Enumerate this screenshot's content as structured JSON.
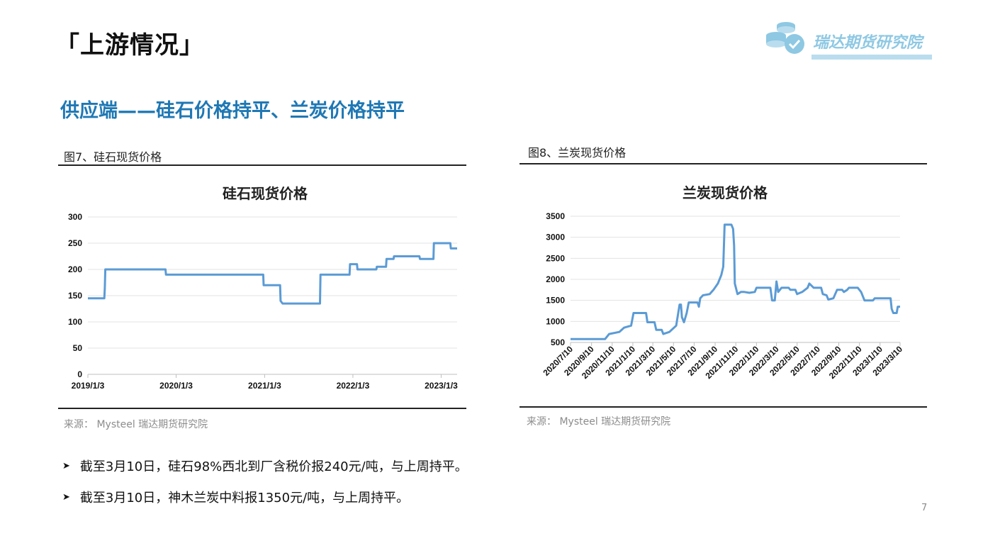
{
  "header": {
    "section_title": "「上游情况」",
    "logo_text": "瑞达期货研究院"
  },
  "subtitle": "供应端——硅石价格持平、兰炭价格持平",
  "figures": [
    {
      "caption": "图7、硅石现货价格",
      "source": "来源：  Mysteel   瑞达期货研究院"
    },
    {
      "caption": "图8、兰炭现货价格",
      "source": "来源：  Mysteel   瑞达期货研究院"
    }
  ],
  "chart_data": [
    {
      "type": "line",
      "title": "硅石现货价格",
      "color": "#5b9bd5",
      "ylim": [
        0,
        300
      ],
      "yticks": [
        0,
        50,
        100,
        150,
        200,
        250,
        300
      ],
      "xticks": [
        "2019/1/3",
        "2020/1/3",
        "2021/1/3",
        "2022/1/3",
        "2023/1/3"
      ],
      "xlim": [
        "2019-01-03",
        "2023-03-10"
      ],
      "grid": true,
      "points": [
        [
          "2019-01-03",
          145
        ],
        [
          "2019-03-12",
          145
        ],
        [
          "2019-03-14",
          165
        ],
        [
          "2019-03-16",
          200
        ],
        [
          "2019-11-20",
          200
        ],
        [
          "2019-11-22",
          190
        ],
        [
          "2020-12-28",
          190
        ],
        [
          "2020-12-30",
          170
        ],
        [
          "2021-03-08",
          170
        ],
        [
          "2021-03-10",
          140
        ],
        [
          "2021-03-18",
          135
        ],
        [
          "2021-08-20",
          135
        ],
        [
          "2021-08-22",
          190
        ],
        [
          "2021-12-20",
          190
        ],
        [
          "2021-12-22",
          210
        ],
        [
          "2022-01-20",
          210
        ],
        [
          "2022-01-22",
          200
        ],
        [
          "2022-04-10",
          200
        ],
        [
          "2022-04-12",
          205
        ],
        [
          "2022-05-20",
          205
        ],
        [
          "2022-05-22",
          220
        ],
        [
          "2022-06-20",
          220
        ],
        [
          "2022-06-22",
          225
        ],
        [
          "2022-10-05",
          225
        ],
        [
          "2022-10-07",
          220
        ],
        [
          "2022-12-02",
          220
        ],
        [
          "2022-12-04",
          250
        ],
        [
          "2023-02-10",
          250
        ],
        [
          "2023-02-12",
          240
        ],
        [
          "2023-03-10",
          240
        ]
      ]
    },
    {
      "type": "line",
      "title": "兰炭现货价格",
      "color": "#5b9bd5",
      "ylim": [
        500,
        3500
      ],
      "yticks": [
        500,
        1000,
        1500,
        2000,
        2500,
        3000,
        3500
      ],
      "xticks": [
        "2020/7/10",
        "2020/9/10",
        "2020/11/10",
        "2021/1/10",
        "2021/3/10",
        "2021/5/10",
        "2021/7/10",
        "2021/9/10",
        "2021/11/10",
        "2022/1/10",
        "2022/3/10",
        "2022/5/10",
        "2022/7/10",
        "2022/9/10",
        "2022/11/10",
        "2023/1/10",
        "2023/3/10"
      ],
      "xlim": [
        "2020-07-10",
        "2023-03-10"
      ],
      "grid": true,
      "points": [
        [
          "2020-07-10",
          580
        ],
        [
          "2020-10-20",
          580
        ],
        [
          "2020-11-01",
          700
        ],
        [
          "2020-12-01",
          750
        ],
        [
          "2020-12-15",
          850
        ],
        [
          "2021-01-05",
          900
        ],
        [
          "2021-01-12",
          1200
        ],
        [
          "2021-02-18",
          1200
        ],
        [
          "2021-02-22",
          980
        ],
        [
          "2021-03-15",
          980
        ],
        [
          "2021-03-20",
          800
        ],
        [
          "2021-04-05",
          800
        ],
        [
          "2021-04-10",
          700
        ],
        [
          "2021-04-28",
          750
        ],
        [
          "2021-05-18",
          900
        ],
        [
          "2021-05-28",
          1400
        ],
        [
          "2021-06-01",
          1400
        ],
        [
          "2021-06-04",
          1100
        ],
        [
          "2021-06-10",
          980
        ],
        [
          "2021-06-18",
          1200
        ],
        [
          "2021-06-24",
          1450
        ],
        [
          "2021-07-20",
          1450
        ],
        [
          "2021-07-24",
          1350
        ],
        [
          "2021-07-28",
          1550
        ],
        [
          "2021-08-05",
          1620
        ],
        [
          "2021-08-25",
          1650
        ],
        [
          "2021-09-05",
          1750
        ],
        [
          "2021-09-18",
          1900
        ],
        [
          "2021-09-28",
          2100
        ],
        [
          "2021-10-04",
          2300
        ],
        [
          "2021-10-08",
          3300
        ],
        [
          "2021-10-28",
          3300
        ],
        [
          "2021-11-02",
          3200
        ],
        [
          "2021-11-05",
          2800
        ],
        [
          "2021-11-07",
          1900
        ],
        [
          "2021-11-15",
          1650
        ],
        [
          "2021-11-25",
          1700
        ],
        [
          "2021-12-05",
          1700
        ],
        [
          "2021-12-20",
          1680
        ],
        [
          "2022-01-05",
          1700
        ],
        [
          "2022-01-10",
          1800
        ],
        [
          "2022-02-20",
          1800
        ],
        [
          "2022-02-25",
          1500
        ],
        [
          "2022-03-05",
          1500
        ],
        [
          "2022-03-10",
          1950
        ],
        [
          "2022-03-15",
          1700
        ],
        [
          "2022-03-25",
          1800
        ],
        [
          "2022-04-15",
          1800
        ],
        [
          "2022-04-20",
          1750
        ],
        [
          "2022-05-05",
          1750
        ],
        [
          "2022-05-10",
          1650
        ],
        [
          "2022-05-25",
          1700
        ],
        [
          "2022-06-10",
          1800
        ],
        [
          "2022-06-15",
          1900
        ],
        [
          "2022-06-28",
          1800
        ],
        [
          "2022-07-20",
          1800
        ],
        [
          "2022-07-25",
          1650
        ],
        [
          "2022-08-05",
          1620
        ],
        [
          "2022-08-10",
          1520
        ],
        [
          "2022-08-25",
          1550
        ],
        [
          "2022-09-05",
          1750
        ],
        [
          "2022-09-20",
          1750
        ],
        [
          "2022-09-25",
          1700
        ],
        [
          "2022-10-05",
          1750
        ],
        [
          "2022-10-10",
          1800
        ],
        [
          "2022-11-05",
          1800
        ],
        [
          "2022-11-15",
          1700
        ],
        [
          "2022-11-25",
          1500
        ],
        [
          "2022-12-20",
          1500
        ],
        [
          "2022-12-25",
          1550
        ],
        [
          "2023-02-10",
          1550
        ],
        [
          "2023-02-13",
          1300
        ],
        [
          "2023-02-18",
          1200
        ],
        [
          "2023-02-28",
          1200
        ],
        [
          "2023-03-03",
          1350
        ],
        [
          "2023-03-10",
          1350
        ]
      ]
    }
  ],
  "bullets": [
    "截至3月10日，硅石98%西北到厂含税价报240元/吨，与上周持平。",
    "截至3月10日，神木兰炭中料报1350元/吨，与上周持平。"
  ],
  "page_number": "7"
}
